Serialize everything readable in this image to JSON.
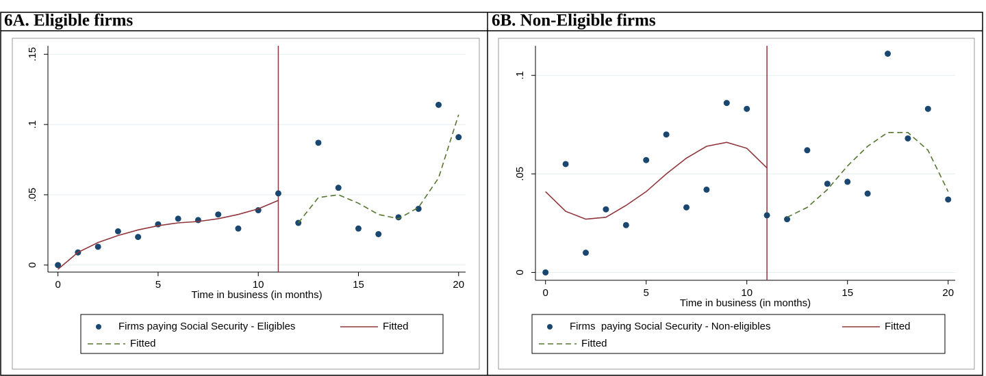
{
  "chart_data": [
    {
      "type": "scatter",
      "title": "6A. Eligible firms",
      "x_label": "Time in business (in months)",
      "x": [
        0,
        1,
        2,
        3,
        4,
        5,
        6,
        7,
        8,
        9,
        10,
        11,
        12,
        13,
        14,
        15,
        16,
        17,
        18,
        19,
        20
      ],
      "xlim": [
        -0.5,
        20.35
      ],
      "xticks": [
        0,
        5,
        10,
        15,
        20
      ],
      "ylim": [
        -0.005,
        0.156
      ],
      "yticks": [
        {
          "value": 0,
          "label": "0"
        },
        {
          "value": 0.05,
          "label": ".05"
        },
        {
          "value": 0.1,
          "label": ".1"
        },
        {
          "value": 0.15,
          "label": ".15"
        }
      ],
      "grid": true,
      "vline": 11,
      "vline_color": "#90353b",
      "series": [
        {
          "name": "Firms paying Social Security - Eligibles",
          "color": "#1a476f",
          "style": "markers",
          "values": [
            0,
            0.009,
            0.013,
            0.024,
            0.02,
            0.029,
            0.033,
            0.032,
            0.036,
            0.026,
            0.039,
            0.051,
            0.03,
            0.087,
            0.055,
            0.026,
            0.022,
            0.034,
            0.04,
            0.114,
            0.091
          ]
        },
        {
          "name": "Fitted",
          "color": "#90353b",
          "style": "solid",
          "values": [
            -0.003,
            0.009,
            0.016,
            0.021,
            0.025,
            0.028,
            0.03,
            0.031,
            0.033,
            0.036,
            0.04,
            0.046,
            null,
            null,
            null,
            null,
            null,
            null,
            null,
            null,
            null
          ]
        },
        {
          "name": "Fitted",
          "color": "#55752f",
          "style": "dashed",
          "values": [
            null,
            null,
            null,
            null,
            null,
            null,
            null,
            null,
            null,
            null,
            null,
            null,
            0.03,
            0.048,
            0.05,
            0.044,
            0.036,
            0.033,
            0.041,
            0.062,
            0.107
          ]
        }
      ]
    },
    {
      "type": "scatter",
      "title": "6B. Non-Eligible firms",
      "x_label": "Time in business (in months)",
      "x": [
        0,
        1,
        2,
        3,
        4,
        5,
        6,
        7,
        8,
        9,
        10,
        11,
        12,
        13,
        14,
        15,
        16,
        17,
        18,
        19,
        20
      ],
      "xlim": [
        -0.5,
        20.35
      ],
      "xticks": [
        0,
        5,
        10,
        15,
        20
      ],
      "ylim": [
        -0.004,
        0.115
      ],
      "yticks": [
        {
          "value": 0,
          "label": "0"
        },
        {
          "value": 0.05,
          "label": ".05"
        },
        {
          "value": 0.1,
          "label": ".1"
        }
      ],
      "grid": true,
      "vline": 11,
      "vline_color": "#90353b",
      "series": [
        {
          "name": "Firms  paying Social Security - Non-eligibles",
          "color": "#1a476f",
          "style": "markers",
          "values": [
            0,
            0.055,
            0.01,
            0.032,
            0.024,
            0.057,
            0.07,
            0.033,
            0.042,
            0.086,
            0.083,
            0.029,
            0.027,
            0.062,
            0.045,
            0.046,
            0.04,
            0.111,
            0.068,
            0.083,
            0.037
          ]
        },
        {
          "name": "Fitted",
          "color": "#90353b",
          "style": "solid",
          "values": [
            0.041,
            0.031,
            0.027,
            0.028,
            0.034,
            0.041,
            0.05,
            0.058,
            0.064,
            0.066,
            0.063,
            0.053,
            null,
            null,
            null,
            null,
            null,
            null,
            null,
            null,
            null
          ]
        },
        {
          "name": "Fitted",
          "color": "#55752f",
          "style": "dashed",
          "values": [
            null,
            null,
            null,
            null,
            null,
            null,
            null,
            null,
            null,
            null,
            null,
            null,
            0.028,
            0.033,
            0.042,
            0.054,
            0.064,
            0.071,
            0.071,
            0.062,
            0.041
          ]
        }
      ]
    }
  ]
}
